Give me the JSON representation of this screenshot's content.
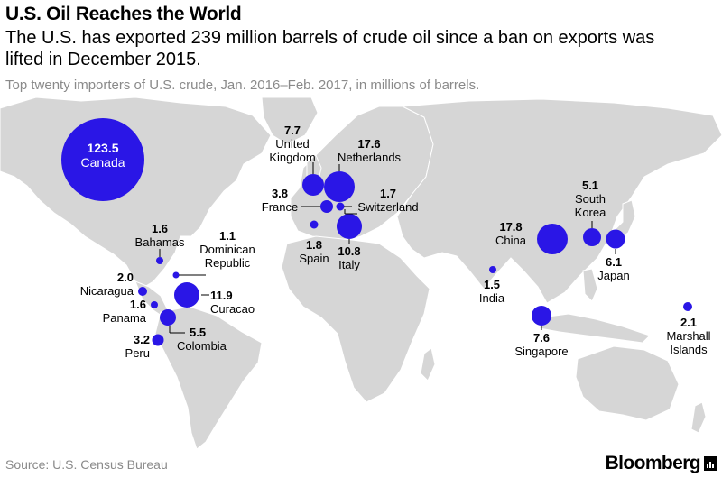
{
  "header": {
    "title": "U.S. Oil Reaches the World",
    "subtitle": "The U.S. has exported 239 million barrels of crude oil since a ban on exports was lifted in December 2015.",
    "caption": "Top twenty importers of U.S. crude, Jan. 2016–Feb. 2017, in millions of barrels."
  },
  "colors": {
    "bubble": "#2a16e6",
    "land": "#d6d6d6",
    "land_stroke": "#ffffff",
    "muted": "#8a8a8a"
  },
  "importers": [
    {
      "name": "Canada",
      "value": 123.5
    },
    {
      "name": "Bahamas",
      "value": 1.6
    },
    {
      "name": "Dominican Republic",
      "value": 1.1
    },
    {
      "name": "Nicaragua",
      "value": 2.0
    },
    {
      "name": "Curacao",
      "value": 11.9
    },
    {
      "name": "Panama",
      "value": 1.6
    },
    {
      "name": "Colombia",
      "value": 5.5
    },
    {
      "name": "Peru",
      "value": 3.2
    },
    {
      "name": "United Kingdom",
      "value": 7.7
    },
    {
      "name": "Netherlands",
      "value": 17.6
    },
    {
      "name": "France",
      "value": 3.8
    },
    {
      "name": "Switzerland",
      "value": 1.7
    },
    {
      "name": "Spain",
      "value": 1.8
    },
    {
      "name": "Italy",
      "value": 10.8
    },
    {
      "name": "China",
      "value": 17.8
    },
    {
      "name": "South Korea",
      "value": 5.1
    },
    {
      "name": "Japan",
      "value": 6.1
    },
    {
      "name": "India",
      "value": 1.5
    },
    {
      "name": "Singapore",
      "value": 7.6
    },
    {
      "name": "Marshall Islands",
      "value": 2.1
    }
  ],
  "labels": {
    "canada": {
      "value": "123.5",
      "name": "Canada"
    },
    "bahamas": {
      "value": "1.6",
      "name": "Bahamas"
    },
    "dominican": {
      "value": "1.1",
      "name1": "Dominican",
      "name2": "Republic"
    },
    "nicaragua": {
      "value": "2.0",
      "name": "Nicaragua"
    },
    "curacao": {
      "value": "11.9",
      "name": "Curacao"
    },
    "panama": {
      "value": "1.6",
      "name": "Panama"
    },
    "colombia": {
      "value": "5.5",
      "name": "Colombia"
    },
    "peru": {
      "value": "3.2",
      "name": "Peru"
    },
    "uk": {
      "value": "7.7",
      "name1": "United",
      "name2": "Kingdom"
    },
    "netherlands": {
      "value": "17.6",
      "name": "Netherlands"
    },
    "france": {
      "value": "3.8",
      "name": "France"
    },
    "switzerland": {
      "value": "1.7",
      "name": "Switzerland"
    },
    "spain": {
      "value": "1.8",
      "name": "Spain"
    },
    "italy": {
      "value": "10.8",
      "name": "Italy"
    },
    "china": {
      "value": "17.8",
      "name": "China"
    },
    "skorea": {
      "value": "5.1",
      "name1": "South",
      "name2": "Korea"
    },
    "japan": {
      "value": "6.1",
      "name": "Japan"
    },
    "india": {
      "value": "1.5",
      "name": "India"
    },
    "singapore": {
      "value": "7.6",
      "name": "Singapore"
    },
    "marshall": {
      "value": "2.1",
      "name1": "Marshall",
      "name2": "Islands"
    }
  },
  "footer": {
    "source": "Source: U.S. Census Bureau",
    "brand": "Bloomberg"
  }
}
